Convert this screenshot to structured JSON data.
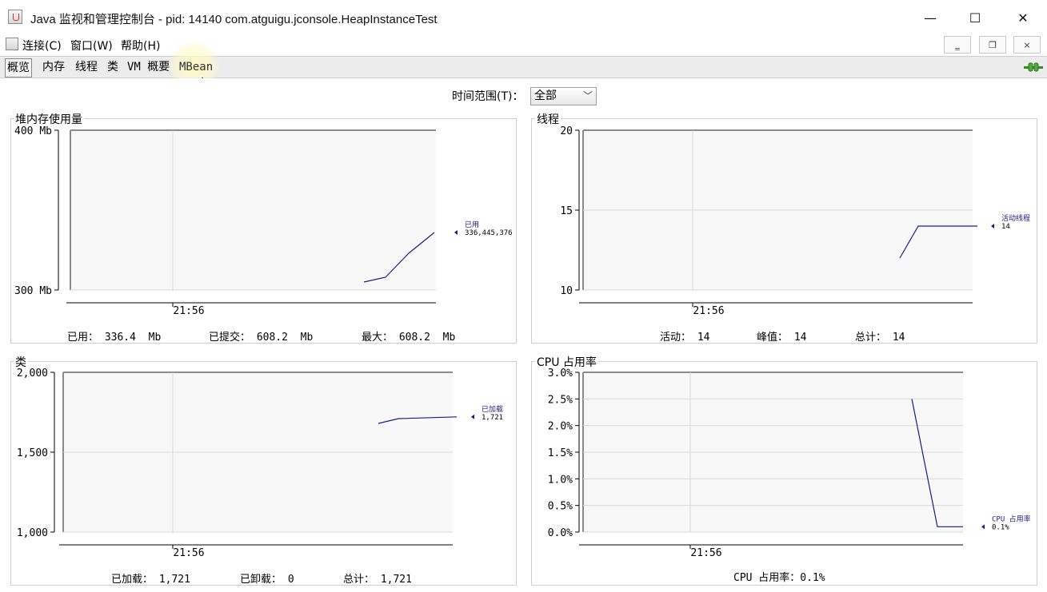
{
  "window": {
    "title": "Java 监视和管理控制台 - pid: 14140 com.atguigu.jconsole.HeapInstanceTest",
    "minimize_glyph": "—",
    "maximize_glyph": "☐",
    "close_glyph": "✕"
  },
  "menubar": {
    "items": [
      "连接(C)",
      "窗口(W)",
      "帮助(H)"
    ],
    "mdi_minimize": "‗",
    "mdi_restore": "❐",
    "mdi_close": "×"
  },
  "tabs": [
    "概览",
    "内存",
    "线程",
    "类",
    "VM 概要",
    "MBean"
  ],
  "active_tab": "概览",
  "time_range": {
    "label": "时间范围(T)：",
    "value": "全部"
  },
  "colors": {
    "line": "#1a1a8c",
    "grid": "#d8d8d8",
    "plot_bg": "#f8f8f8",
    "frame": "#8a8a8a"
  },
  "panels": {
    "heap": {
      "title": "堆内存使用量",
      "stats": [
        "已用： 336.4  Mb",
        "已提交： 608.2  Mb",
        "最大： 608.2  Mb"
      ],
      "chart_data": {
        "type": "line",
        "yticks": [
          "400 Mb",
          "300 Mb"
        ],
        "ylim": [
          300,
          400
        ],
        "xticks": [
          "21:56"
        ],
        "series": [
          {
            "name": "已用",
            "latest": "336,445,376",
            "values": [
              305,
              308,
              323,
              336
            ]
          }
        ]
      }
    },
    "threads": {
      "title": "线程",
      "stats": [
        "活动： 14",
        "峰值： 14",
        "总计： 14"
      ],
      "chart_data": {
        "type": "line",
        "yticks": [
          "20",
          "15",
          "10"
        ],
        "ylim": [
          10,
          20
        ],
        "xticks": [
          "21:56"
        ],
        "series": [
          {
            "name": "活动线程",
            "latest": "14",
            "values": [
              12,
              14,
              14,
              14
            ]
          }
        ]
      }
    },
    "classes": {
      "title": "类",
      "stats": [
        "已加载： 1,721",
        "已卸载： 0",
        "总计： 1,721"
      ],
      "chart_data": {
        "type": "line",
        "yticks": [
          "2,000",
          "1,500",
          "1,000"
        ],
        "ylim": [
          1000,
          2000
        ],
        "xticks": [
          "21:56"
        ],
        "series": [
          {
            "name": "已加载",
            "latest": "1,721",
            "values": [
              1680,
              1710,
              1721
            ]
          }
        ]
      }
    },
    "cpu": {
      "title": "CPU 占用率",
      "stats": [
        "CPU 占用率：0.1%"
      ],
      "chart_data": {
        "type": "line",
        "yticks": [
          "3.0%",
          "2.5%",
          "2.0%",
          "1.5%",
          "1.0%",
          "0.5%",
          "0.0%"
        ],
        "ylim": [
          0,
          3
        ],
        "xticks": [
          "21:56"
        ],
        "series": [
          {
            "name": "CPU 占用率",
            "latest": "0.1%",
            "values": [
              2.5,
              0.1,
              0.1
            ]
          }
        ]
      }
    }
  }
}
